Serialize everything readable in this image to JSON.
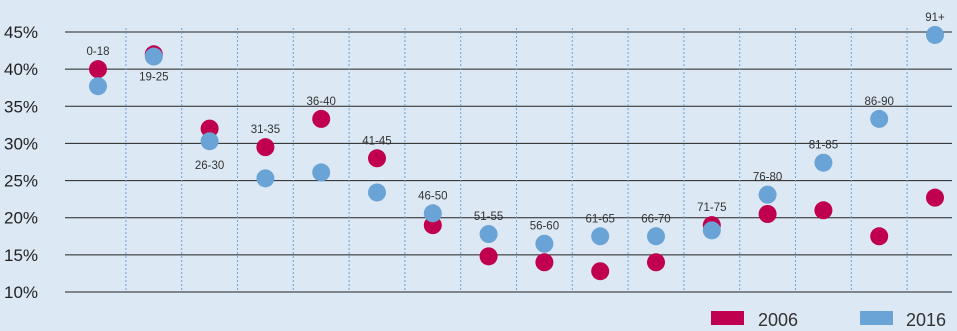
{
  "chart_data": {
    "type": "scatter",
    "categories": [
      "0-18",
      "19-25",
      "26-30",
      "31-35",
      "36-40",
      "41-45",
      "46-50",
      "51-55",
      "56-60",
      "61-65",
      "66-70",
      "71-75",
      "76-80",
      "81-85",
      "86-90",
      "91+"
    ],
    "series": [
      {
        "name": "2006",
        "values": [
          40,
          42,
          32,
          29.5,
          33.3,
          28,
          19,
          14.8,
          14,
          12.8,
          14,
          19,
          20.5,
          21,
          17.5,
          22.7
        ]
      },
      {
        "name": "2016",
        "values": [
          37.7,
          41.7,
          30.3,
          25.3,
          26.1,
          23.4,
          20.6,
          17.8,
          16.5,
          17.5,
          17.5,
          18.3,
          23.1,
          27.4,
          33.3,
          44.6
        ]
      }
    ],
    "y_ticks": [
      "10%",
      "15%",
      "20%",
      "25%",
      "30%",
      "35%",
      "40%",
      "45%"
    ],
    "ylim": [
      10,
      45
    ],
    "legend_position": "bottom-right",
    "colors": {
      "2006": "#c0004f",
      "2016": "#6aa3d5"
    }
  }
}
